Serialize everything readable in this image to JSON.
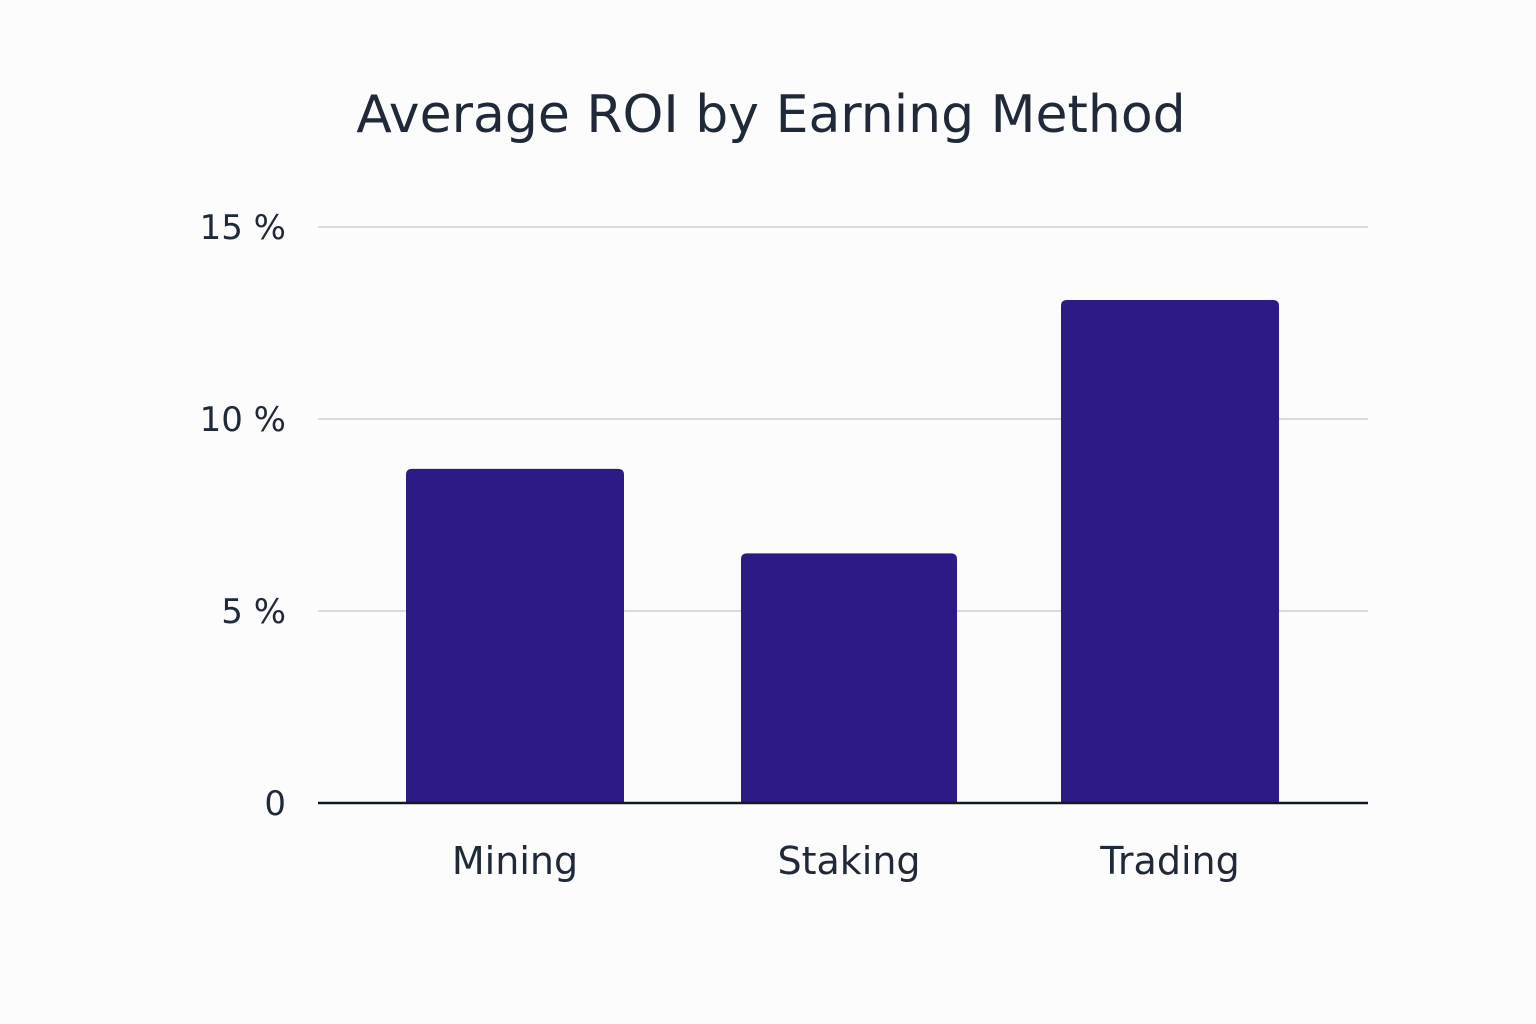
{
  "chart_data": {
    "type": "bar",
    "title": "Average ROI by Earning Method",
    "xlabel": "",
    "ylabel": "",
    "categories": [
      "Mining",
      "Staking",
      "Trading"
    ],
    "values": [
      8.7,
      6.5,
      13.1
    ],
    "ylim": [
      0,
      15
    ],
    "yticks": [
      0,
      5,
      10,
      15
    ],
    "ytick_labels": [
      "0",
      "5 %",
      "10 %",
      "15 %"
    ],
    "grid": true,
    "legend": "none",
    "bar_color": "#2e1a87"
  }
}
